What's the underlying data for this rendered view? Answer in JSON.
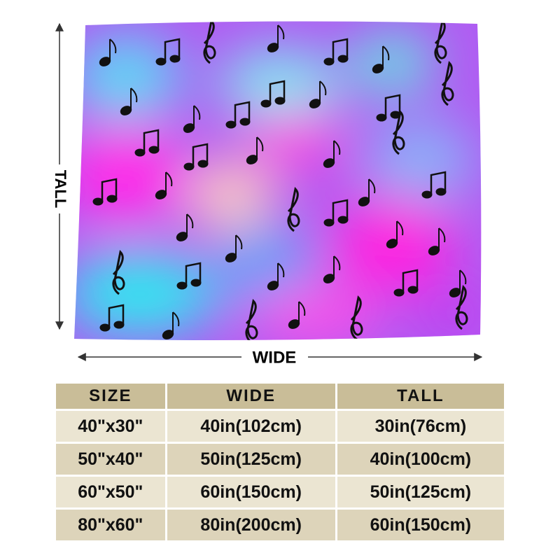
{
  "dimension_labels": {
    "tall": "TALL",
    "wide": "WIDE"
  },
  "table": {
    "header": [
      "SIZE",
      "WIDE",
      "TALL"
    ],
    "rows": [
      [
        "40\"x30\"",
        "40in(102cm)",
        "30in(76cm)"
      ],
      [
        "50\"x40\"",
        "50in(125cm)",
        "40in(100cm)"
      ],
      [
        "60\"x50\"",
        "60in(150cm)",
        "50in(125cm)"
      ],
      [
        "80\"x60\"",
        "80in(200cm)",
        "60in(150cm)"
      ]
    ]
  }
}
